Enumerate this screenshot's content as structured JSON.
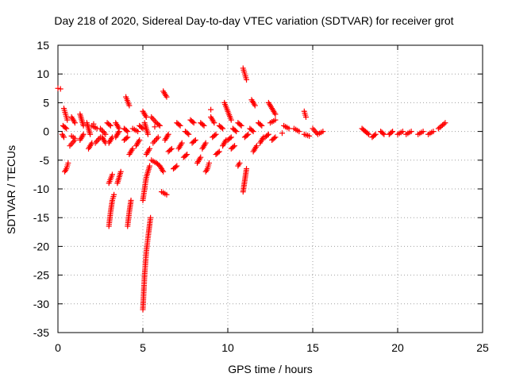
{
  "chart_data": {
    "type": "scatter",
    "title": "Day 218 of 2020, Sidereal Day-to-day VTEC variation (SDTVAR) for receiver grot",
    "xlabel": "GPS time / hours",
    "ylabel": "SDTVAR / TECUs",
    "xlim": [
      0,
      25
    ],
    "ylim": [
      -35,
      15
    ],
    "xticks": [
      0,
      5,
      10,
      15,
      20,
      25
    ],
    "yticks": [
      -35,
      -30,
      -25,
      -20,
      -15,
      -10,
      -5,
      0,
      5,
      10,
      15
    ],
    "grid": true,
    "marker": "+",
    "color": "#ff0000",
    "series": [
      {
        "name": "SDTVAR",
        "tracks": [
          [
            [
              0.0,
              7.5
            ],
            [
              0.15,
              7.4
            ]
          ],
          [
            [
              0.25,
              -0.5
            ],
            [
              0.35,
              -1.0
            ]
          ],
          [
            [
              0.3,
              1.0
            ],
            [
              0.5,
              0.5
            ]
          ],
          [
            [
              0.35,
              4.0
            ],
            [
              0.45,
              3.0
            ],
            [
              0.55,
              2.0
            ]
          ],
          [
            [
              0.4,
              -7.0
            ],
            [
              0.5,
              -6.5
            ],
            [
              0.6,
              -5.5
            ]
          ],
          [
            [
              0.8,
              2.5
            ],
            [
              1.0,
              1.5
            ]
          ],
          [
            [
              0.8,
              -0.8
            ],
            [
              1.0,
              -1.2
            ]
          ],
          [
            [
              0.7,
              -2.5
            ],
            [
              1.0,
              -1.5
            ]
          ],
          [
            [
              1.3,
              3.0
            ],
            [
              1.5,
              1.0
            ]
          ],
          [
            [
              1.3,
              -1.5
            ],
            [
              1.5,
              -0.5
            ]
          ],
          [
            [
              1.7,
              1.5
            ],
            [
              1.9,
              -0.5
            ]
          ],
          [
            [
              1.8,
              -3.0
            ],
            [
              2.0,
              -2.0
            ]
          ],
          [
            [
              2.0,
              1.0
            ],
            [
              2.3,
              0.5
            ]
          ],
          [
            [
              2.2,
              -2.0
            ],
            [
              2.5,
              -1.0
            ]
          ],
          [
            [
              2.5,
              0.5
            ],
            [
              2.8,
              -0.5
            ]
          ],
          [
            [
              2.6,
              -1.0
            ],
            [
              2.8,
              -2.0
            ]
          ],
          [
            [
              2.9,
              1.5
            ],
            [
              3.1,
              1.0
            ]
          ],
          [
            [
              3.0,
              -2.0
            ],
            [
              3.2,
              -1.0
            ]
          ],
          [
            [
              3.0,
              -16.5
            ],
            [
              3.1,
              -14.0
            ],
            [
              3.2,
              -12.0
            ],
            [
              3.3,
              -11.0
            ]
          ],
          [
            [
              3.0,
              -9.0
            ],
            [
              3.2,
              -7.5
            ]
          ],
          [
            [
              3.4,
              1.5
            ],
            [
              3.6,
              0.5
            ]
          ],
          [
            [
              3.4,
              -1.0
            ],
            [
              3.6,
              0.0
            ]
          ],
          [
            [
              3.5,
              -9.0
            ],
            [
              3.7,
              -7.0
            ]
          ],
          [
            [
              3.9,
              0.5
            ],
            [
              4.1,
              0.0
            ]
          ],
          [
            [
              3.9,
              -1.5
            ],
            [
              4.1,
              -1.0
            ]
          ],
          [
            [
              4.1,
              -16.5
            ],
            [
              4.2,
              -14.0
            ],
            [
              4.3,
              -12.0
            ]
          ],
          [
            [
              4.0,
              6.0
            ],
            [
              4.2,
              4.5
            ]
          ],
          [
            [
              4.2,
              -4.0
            ],
            [
              4.4,
              -3.0
            ]
          ],
          [
            [
              4.4,
              0.5
            ],
            [
              4.7,
              0.0
            ]
          ],
          [
            [
              4.6,
              -2.5
            ],
            [
              4.8,
              -1.5
            ]
          ],
          [
            [
              4.8,
              1.0
            ],
            [
              5.0,
              0.5
            ]
          ],
          [
            [
              5.0,
              -31.0
            ],
            [
              5.1,
              -25.0
            ],
            [
              5.2,
              -21.0
            ],
            [
              5.3,
              -18.5
            ],
            [
              5.45,
              -15.0
            ]
          ],
          [
            [
              5.0,
              -12.0
            ],
            [
              5.2,
              -8.0
            ],
            [
              5.4,
              -6.0
            ]
          ],
          [
            [
              5.0,
              3.5
            ],
            [
              5.2,
              2.5
            ]
          ],
          [
            [
              5.1,
              1.5
            ],
            [
              5.3,
              -0.5
            ]
          ],
          [
            [
              5.2,
              -4.0
            ],
            [
              5.4,
              -3.0
            ]
          ],
          [
            [
              5.5,
              -5.0
            ],
            [
              5.8,
              -5.5
            ],
            [
              6.0,
              -6.0
            ],
            [
              6.2,
              -7.0
            ]
          ],
          [
            [
              5.5,
              2.5
            ],
            [
              5.8,
              1.5
            ],
            [
              6.0,
              1.0
            ]
          ],
          [
            [
              5.6,
              -2.0
            ],
            [
              5.9,
              -1.0
            ]
          ],
          [
            [
              6.2,
              7.0
            ],
            [
              6.3,
              6.5
            ],
            [
              6.4,
              6.0
            ]
          ],
          [
            [
              6.1,
              -10.5
            ],
            [
              6.4,
              -11.0
            ]
          ],
          [
            [
              6.3,
              -1.5
            ],
            [
              6.5,
              -0.5
            ]
          ],
          [
            [
              6.5,
              -3.5
            ],
            [
              6.7,
              -3.0
            ]
          ],
          [
            [
              6.8,
              -6.5
            ],
            [
              7.0,
              -6.0
            ]
          ],
          [
            [
              7.0,
              1.5
            ],
            [
              7.2,
              1.0
            ]
          ],
          [
            [
              7.1,
              -3.0
            ],
            [
              7.3,
              -2.0
            ]
          ],
          [
            [
              7.4,
              -4.5
            ],
            [
              7.6,
              -4.0
            ]
          ],
          [
            [
              7.5,
              0.0
            ],
            [
              7.7,
              -0.5
            ]
          ],
          [
            [
              7.8,
              2.0
            ],
            [
              8.0,
              1.5
            ]
          ],
          [
            [
              7.9,
              -2.0
            ],
            [
              8.1,
              -1.5
            ]
          ],
          [
            [
              8.2,
              -5.5
            ],
            [
              8.4,
              -4.5
            ]
          ],
          [
            [
              8.4,
              1.5
            ],
            [
              8.6,
              1.0
            ]
          ],
          [
            [
              8.5,
              -3.0
            ],
            [
              8.7,
              -2.0
            ]
          ],
          [
            [
              8.7,
              -7.0
            ],
            [
              8.8,
              -6.5
            ],
            [
              8.9,
              -5.5
            ]
          ],
          [
            [
              9.0,
              2.5
            ],
            [
              9.2,
              1.5
            ]
          ],
          [
            [
              9.1,
              -1.0
            ],
            [
              9.3,
              -0.5
            ]
          ],
          [
            [
              9.3,
              -4.0
            ],
            [
              9.5,
              -3.5
            ]
          ],
          [
            [
              9.5,
              1.0
            ],
            [
              9.7,
              0.5
            ]
          ],
          [
            [
              9.7,
              -2.5
            ],
            [
              9.9,
              -1.5
            ]
          ],
          [
            [
              9.8,
              5.0
            ],
            [
              10.0,
              3.5
            ],
            [
              10.2,
              2.0
            ]
          ],
          [
            [
              10.0,
              -1.5
            ],
            [
              10.2,
              -1.0
            ]
          ],
          [
            [
              10.2,
              -3.0
            ],
            [
              10.4,
              -2.5
            ]
          ],
          [
            [
              10.3,
              0.5
            ],
            [
              10.5,
              0.0
            ]
          ],
          [
            [
              10.6,
              -6.0
            ],
            [
              10.7,
              -5.5
            ]
          ],
          [
            [
              10.6,
              1.5
            ],
            [
              10.8,
              1.0
            ]
          ],
          [
            [
              10.9,
              11.0
            ],
            [
              11.0,
              10.0
            ],
            [
              11.1,
              9.0
            ]
          ],
          [
            [
              10.9,
              -10.5
            ],
            [
              11.0,
              -8.5
            ],
            [
              11.1,
              -6.5
            ]
          ],
          [
            [
              11.0,
              -1.0
            ],
            [
              11.2,
              -0.5
            ]
          ],
          [
            [
              11.3,
              0.5
            ],
            [
              11.5,
              0.0
            ]
          ],
          [
            [
              11.4,
              5.5
            ],
            [
              11.6,
              4.5
            ]
          ],
          [
            [
              11.5,
              -3.5
            ],
            [
              11.7,
              -2.5
            ]
          ],
          [
            [
              11.8,
              1.5
            ],
            [
              12.0,
              1.0
            ]
          ],
          [
            [
              11.9,
              -2.0
            ],
            [
              12.1,
              -1.0
            ]
          ],
          [
            [
              12.2,
              -1.0
            ],
            [
              12.4,
              -0.5
            ]
          ],
          [
            [
              12.4,
              5.0
            ],
            [
              12.6,
              4.0
            ],
            [
              12.8,
              3.0
            ]
          ],
          [
            [
              12.5,
              1.5
            ],
            [
              12.8,
              2.0
            ]
          ],
          [
            [
              12.6,
              -1.5
            ],
            [
              12.8,
              -1.0
            ]
          ],
          [
            [
              13.3,
              1.0
            ],
            [
              13.6,
              0.5
            ]
          ],
          [
            [
              13.9,
              0.5
            ],
            [
              14.2,
              0.0
            ]
          ],
          [
            [
              14.5,
              3.5
            ],
            [
              14.6,
              2.5
            ]
          ],
          [
            [
              14.5,
              -0.5
            ],
            [
              14.8,
              -0.8
            ]
          ],
          [
            [
              15.0,
              0.5
            ],
            [
              15.3,
              -0.5
            ],
            [
              15.6,
              0.0
            ]
          ],
          [
            [
              17.9,
              0.5
            ],
            [
              18.1,
              0.0
            ],
            [
              18.3,
              -0.5
            ]
          ],
          [
            [
              18.5,
              -1.0
            ],
            [
              18.7,
              -0.5
            ]
          ],
          [
            [
              19.0,
              0.0
            ],
            [
              19.2,
              -0.5
            ]
          ],
          [
            [
              19.5,
              -0.5
            ],
            [
              19.7,
              0.0
            ]
          ],
          [
            [
              20.0,
              -0.5
            ],
            [
              20.3,
              0.0
            ]
          ],
          [
            [
              20.5,
              -0.5
            ],
            [
              20.8,
              0.0
            ]
          ],
          [
            [
              21.2,
              -0.5
            ],
            [
              21.5,
              0.0
            ]
          ],
          [
            [
              21.8,
              -0.5
            ],
            [
              22.1,
              0.0
            ]
          ],
          [
            [
              22.4,
              0.5
            ],
            [
              22.8,
              1.5
            ]
          ]
        ],
        "points": [
          [
            9.0,
            3.8
          ],
          [
            2.1,
            1.3
          ],
          [
            5.7,
            0.8
          ],
          [
            13.2,
            -0.3
          ]
        ]
      }
    ]
  }
}
